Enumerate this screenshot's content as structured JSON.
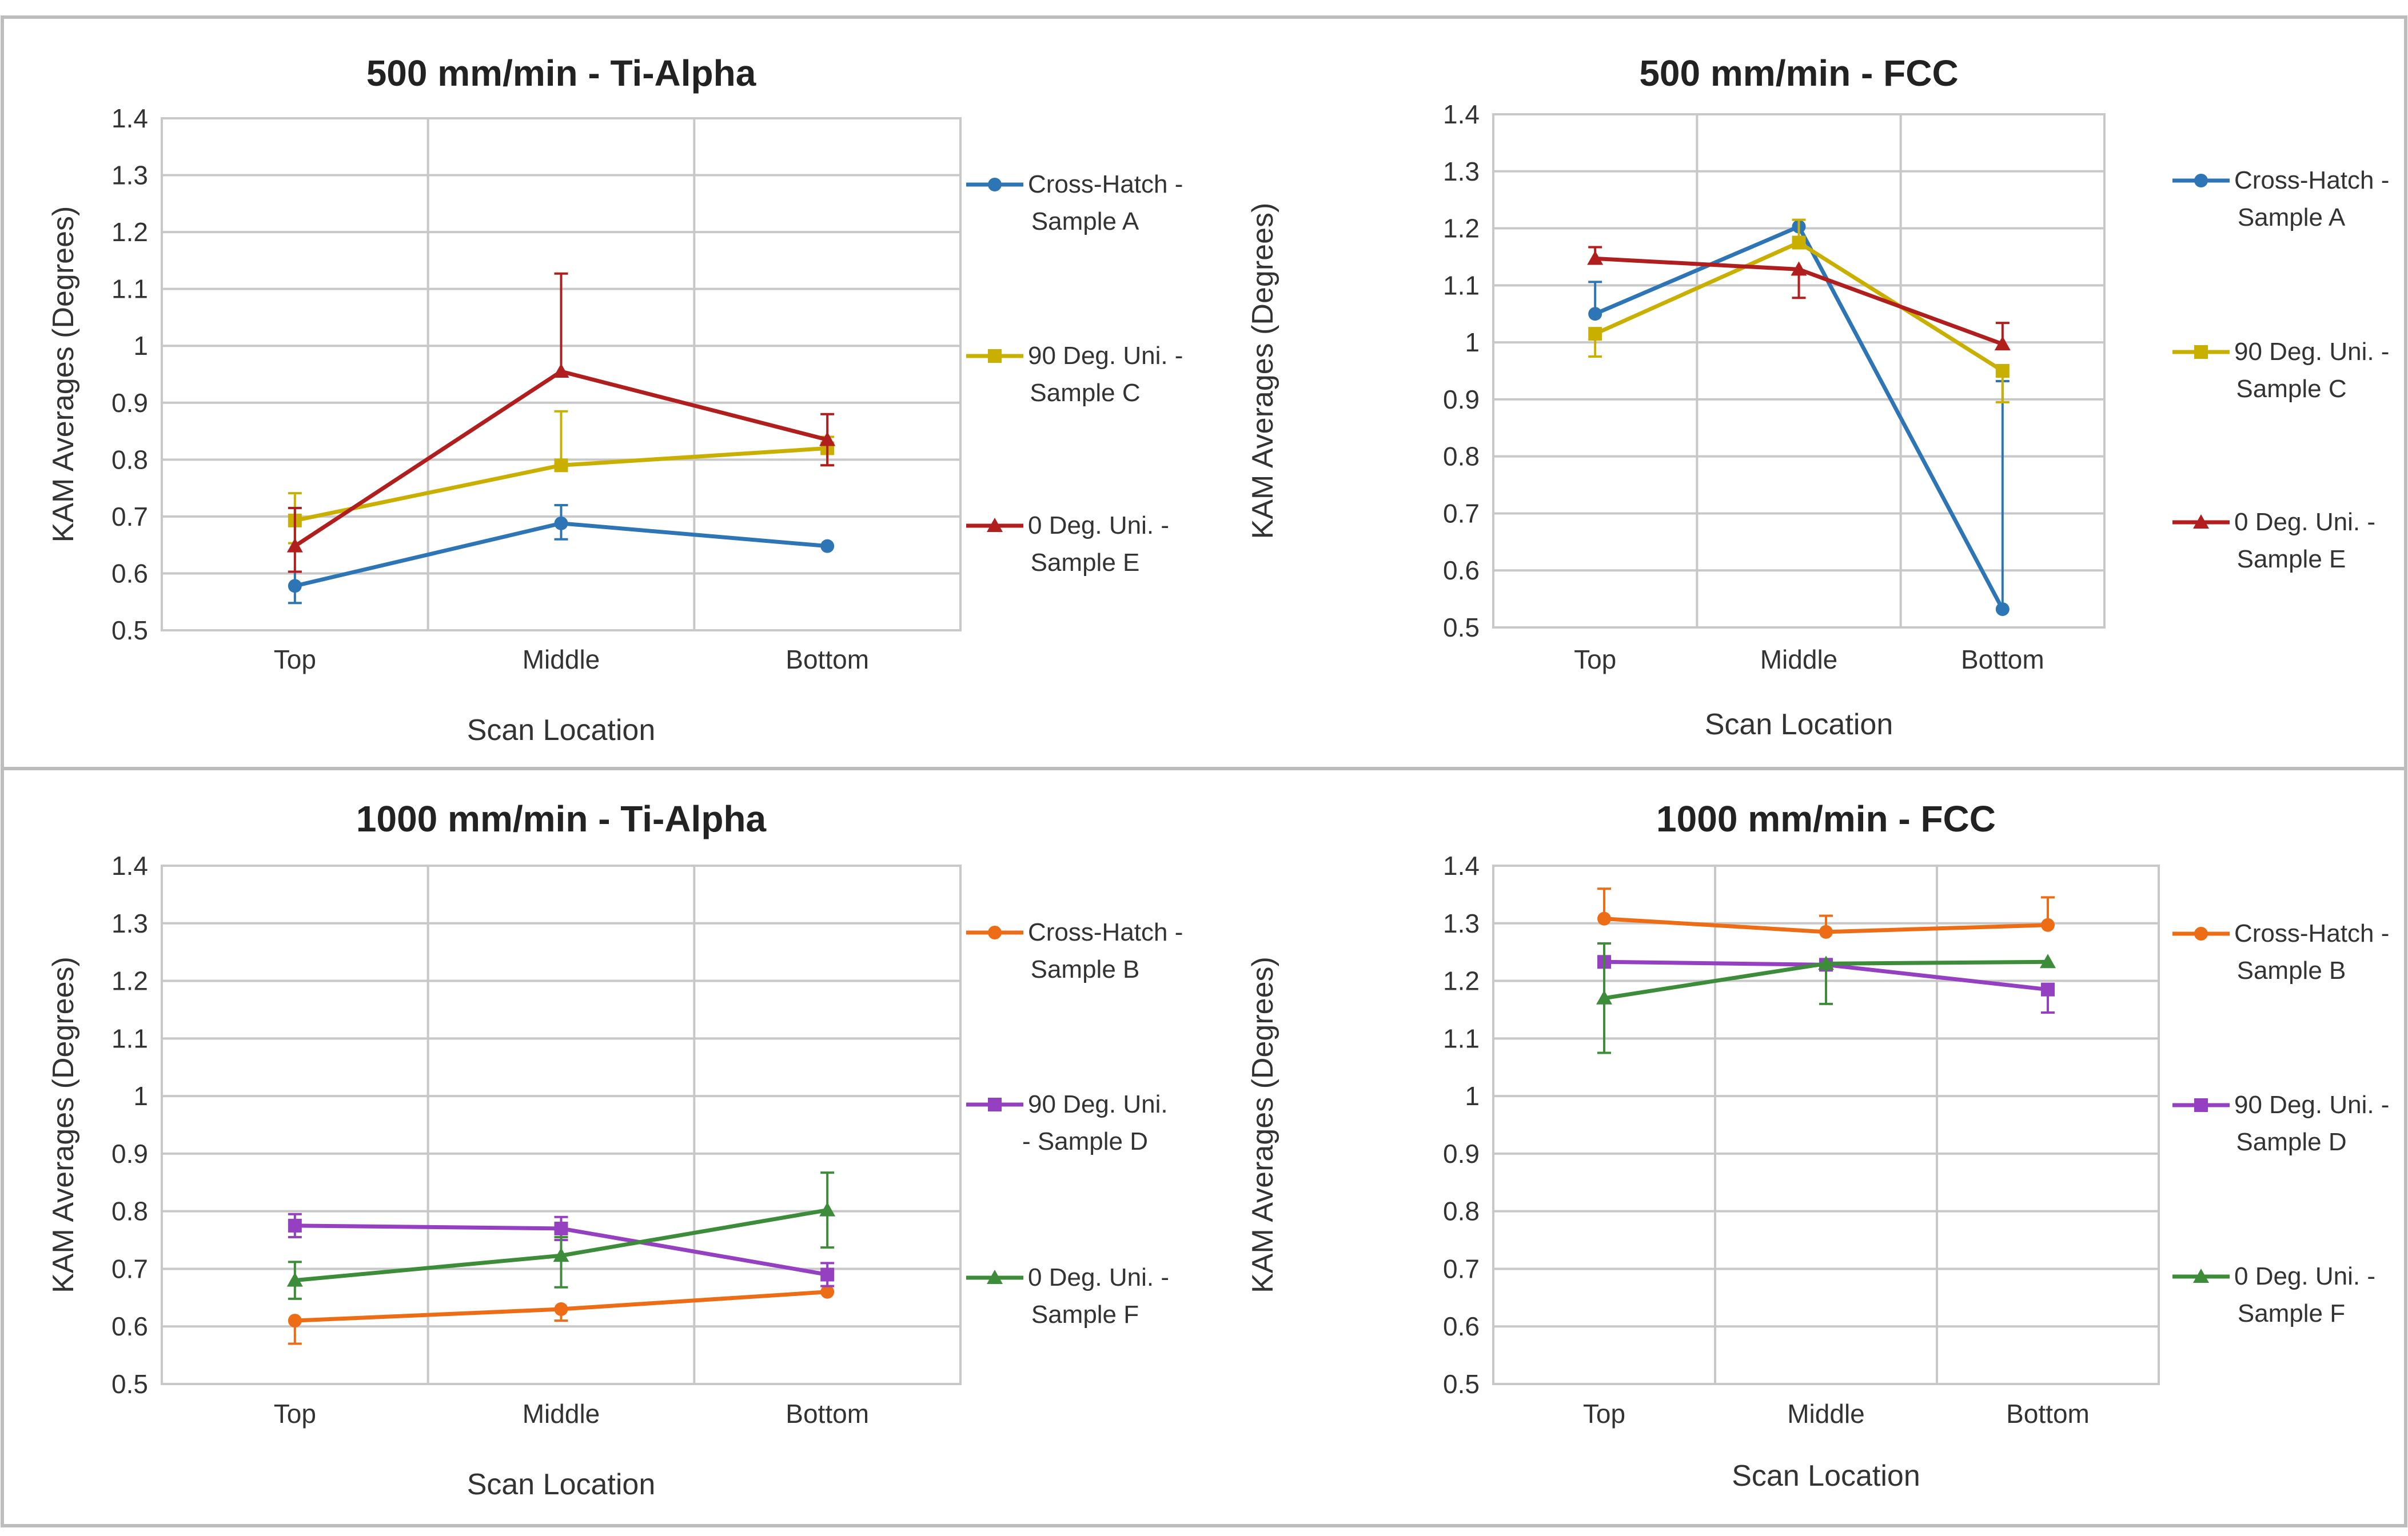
{
  "chart_data": [
    {
      "type": "line",
      "title": "500 mm/min - Ti-Alpha",
      "xlabel": "Scan Location",
      "ylabel": "KAM Averages (Degrees)",
      "categories": [
        "Top",
        "Middle",
        "Bottom"
      ],
      "ylim": [
        0.5,
        1.4
      ],
      "yticks": [
        "0.5",
        "0.6",
        "0.7",
        "0.8",
        "0.9",
        "1",
        "1.1",
        "1.2",
        "1.3",
        "1.4"
      ],
      "grid": true,
      "legend_position": "right",
      "series": [
        {
          "name_lines": [
            "Cross-Hatch -",
            "Sample A"
          ],
          "color": "#2e75b6",
          "marker": "circle",
          "values": [
            0.578,
            0.688,
            0.648
          ],
          "err_high": [
            0.025,
            0.032,
            0.0
          ],
          "err_low": [
            0.03,
            0.028,
            0.0
          ]
        },
        {
          "name_lines": [
            "90 Deg. Uni.  -",
            "Sample C"
          ],
          "color": "#c9b000",
          "marker": "square",
          "values": [
            0.693,
            0.79,
            0.82
          ],
          "err_high": [
            0.048,
            0.095,
            0.02
          ],
          "err_low": [
            0.04,
            0.0,
            0.03
          ]
        },
        {
          "name_lines": [
            "0 Deg. Uni.  -",
            "Sample E"
          ],
          "color": "#b01e1e",
          "marker": "triangle",
          "values": [
            0.648,
            0.955,
            0.835
          ],
          "err_high": [
            0.067,
            0.172,
            0.045
          ],
          "err_low": [
            0.045,
            0.0,
            0.045
          ]
        }
      ]
    },
    {
      "type": "line",
      "title": "500 mm/min - FCC",
      "xlabel": "Scan Location",
      "ylabel": "KAM Averages (Degrees)",
      "categories": [
        "Top",
        "Middle",
        "Bottom"
      ],
      "ylim": [
        0.5,
        1.4
      ],
      "yticks": [
        "0.5",
        "0.6",
        "0.7",
        "0.8",
        "0.9",
        "1",
        "1.1",
        "1.2",
        "1.3",
        "1.4"
      ],
      "grid": true,
      "legend_position": "right",
      "series": [
        {
          "name_lines": [
            "Cross-Hatch -",
            "Sample A"
          ],
          "color": "#2e75b6",
          "marker": "circle",
          "values": [
            1.05,
            1.203,
            0.532
          ],
          "err_high": [
            0.056,
            0.0,
            0.4
          ],
          "err_low": [
            0.0,
            0.0,
            0.0
          ]
        },
        {
          "name_lines": [
            "90 Deg. Uni.  -",
            "Sample C"
          ],
          "color": "#c9b000",
          "marker": "square",
          "values": [
            1.015,
            1.175,
            0.95
          ],
          "err_high": [
            0.0,
            0.04,
            0.0
          ],
          "err_low": [
            0.04,
            0.0,
            0.055
          ]
        },
        {
          "name_lines": [
            "0 Deg. Uni.  -",
            "Sample E"
          ],
          "color": "#b01e1e",
          "marker": "triangle",
          "values": [
            1.147,
            1.128,
            0.997
          ],
          "err_high": [
            0.02,
            0.0,
            0.037
          ],
          "err_low": [
            0.0,
            0.05,
            0.0
          ]
        }
      ]
    },
    {
      "type": "line",
      "title": "1000 mm/min - Ti-Alpha",
      "xlabel": "Scan Location",
      "ylabel": "KAM Averages (Degrees)",
      "categories": [
        "Top",
        "Middle",
        "Bottom"
      ],
      "ylim": [
        0.5,
        1.4
      ],
      "yticks": [
        "0.5",
        "0.6",
        "0.7",
        "0.8",
        "0.9",
        "1",
        "1.1",
        "1.2",
        "1.3",
        "1.4"
      ],
      "grid": true,
      "legend_position": "right",
      "series": [
        {
          "name_lines": [
            "Cross-Hatch -",
            "Sample B"
          ],
          "color": "#ed6d16",
          "marker": "circle",
          "values": [
            0.61,
            0.63,
            0.66
          ],
          "err_high": [
            0.0,
            0.0,
            0.0
          ],
          "err_low": [
            0.04,
            0.02,
            0.0
          ]
        },
        {
          "name_lines": [
            "90 Deg. Uni.",
            "- Sample D"
          ],
          "color": "#9540c0",
          "marker": "square",
          "values": [
            0.775,
            0.77,
            0.69
          ],
          "err_high": [
            0.02,
            0.02,
            0.02
          ],
          "err_low": [
            0.02,
            0.02,
            0.02
          ]
        },
        {
          "name_lines": [
            "0 Deg. Uni. -",
            "Sample F"
          ],
          "color": "#3c8c3a",
          "marker": "triangle",
          "values": [
            0.68,
            0.723,
            0.802
          ],
          "err_high": [
            0.032,
            0.032,
            0.065
          ],
          "err_low": [
            0.032,
            0.055,
            0.065
          ]
        }
      ]
    },
    {
      "type": "line",
      "title": "1000 mm/min - FCC",
      "xlabel": "Scan Location",
      "ylabel": "KAM Averages (Degrees)",
      "categories": [
        "Top",
        "Middle",
        "Bottom"
      ],
      "ylim": [
        0.5,
        1.4
      ],
      "yticks": [
        "0.5",
        "0.6",
        "0.7",
        "0.8",
        "0.9",
        "1",
        "1.1",
        "1.2",
        "1.3",
        "1.4"
      ],
      "grid": true,
      "legend_position": "right",
      "series": [
        {
          "name_lines": [
            "Cross-Hatch -",
            "Sample B"
          ],
          "color": "#ed6d16",
          "marker": "circle",
          "values": [
            1.308,
            1.285,
            1.297
          ],
          "err_high": [
            0.052,
            0.028,
            0.048
          ],
          "err_low": [
            0.0,
            0.0,
            0.0
          ]
        },
        {
          "name_lines": [
            "90 Deg. Uni.  -",
            "Sample D"
          ],
          "color": "#9540c0",
          "marker": "square",
          "values": [
            1.233,
            1.228,
            1.185
          ],
          "err_high": [
            0.0,
            0.0,
            0.0
          ],
          "err_low": [
            0.0,
            0.0,
            0.04
          ]
        },
        {
          "name_lines": [
            "0 Deg. Uni.  -",
            "Sample F"
          ],
          "color": "#3c8c3a",
          "marker": "triangle",
          "values": [
            1.17,
            1.23,
            1.233
          ],
          "err_high": [
            0.095,
            0.0,
            0.0
          ],
          "err_low": [
            0.095,
            0.07,
            0.0
          ]
        }
      ]
    }
  ]
}
